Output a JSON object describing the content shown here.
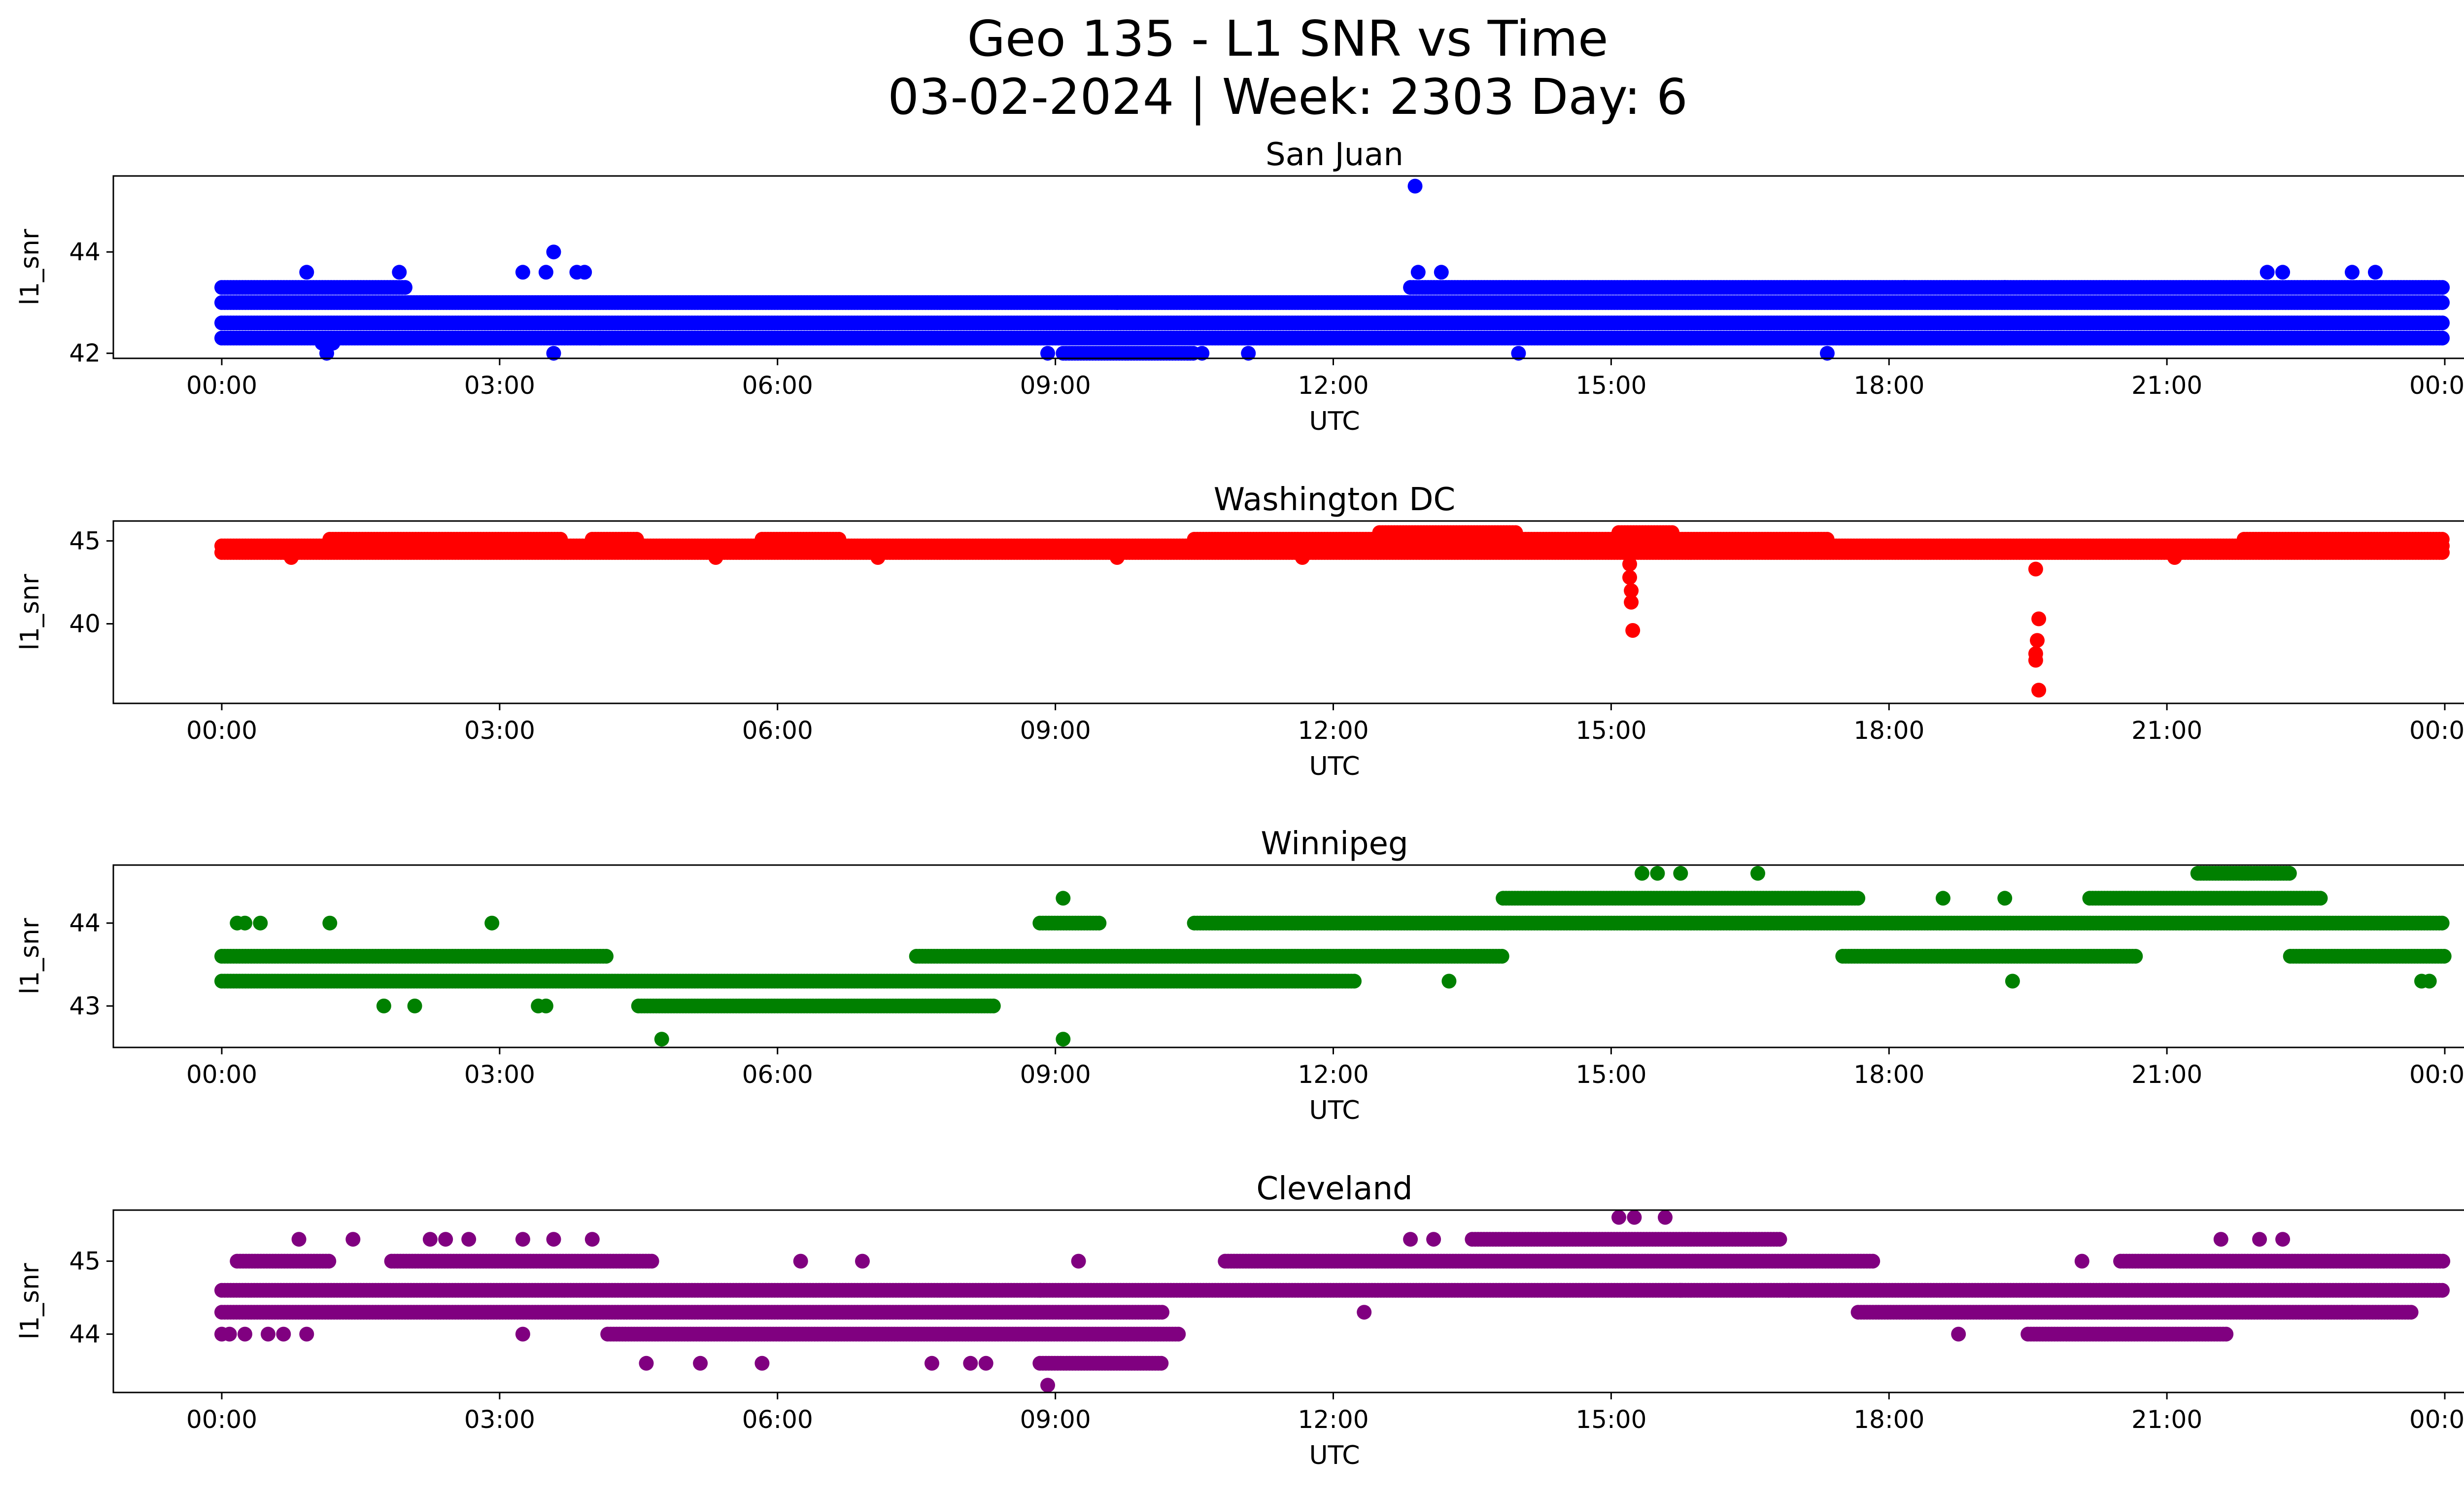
{
  "figure": {
    "title": "Geo 135 - L1 SNR vs Time",
    "subtitle": "03-02-2024 | Week: 2303 Day: 6"
  },
  "chart_data": [
    {
      "type": "scatter",
      "title": "San Juan",
      "xlabel": "UTC",
      "ylabel": "l1_snr",
      "color": "#0000ff",
      "xlim": [
        "00:00",
        "24:00"
      ],
      "ylim": [
        41.9,
        45.5
      ],
      "xticks": [
        "00:00",
        "03:00",
        "06:00",
        "09:00",
        "12:00",
        "15:00",
        "18:00",
        "21:00",
        "00:00"
      ],
      "yticks": [
        42,
        44
      ],
      "bands": [
        {
          "y": 42.3,
          "segments": [
            [
              "00:00",
              "24:00"
            ]
          ]
        },
        {
          "y": 42.6,
          "segments": [
            [
              "00:00",
              "24:00"
            ]
          ]
        },
        {
          "y": 43.0,
          "segments": [
            [
              "00:00",
              "24:00"
            ]
          ]
        },
        {
          "y": 43.3,
          "segments": [
            [
              "00:00",
              "02:00"
            ],
            [
              "12:50",
              "24:00"
            ]
          ]
        },
        {
          "y": 42.0,
          "segments": [
            [
              "09:05",
              "10:30"
            ]
          ]
        }
      ],
      "points": [
        [
          "00:55",
          43.6
        ],
        [
          "01:05",
          42.2
        ],
        [
          "01:08",
          42.0
        ],
        [
          "01:12",
          42.2
        ],
        [
          "01:55",
          43.6
        ],
        [
          "03:15",
          43.6
        ],
        [
          "03:30",
          43.6
        ],
        [
          "03:35",
          44.0
        ],
        [
          "03:35",
          42.0
        ],
        [
          "03:50",
          43.6
        ],
        [
          "03:55",
          43.6
        ],
        [
          "04:05",
          42.3
        ],
        [
          "08:55",
          42.0
        ],
        [
          "09:40",
          43.0
        ],
        [
          "10:35",
          42.0
        ],
        [
          "11:05",
          42.0
        ],
        [
          "12:53",
          45.3
        ],
        [
          "12:55",
          43.6
        ],
        [
          "13:10",
          43.6
        ],
        [
          "14:00",
          42.0
        ],
        [
          "17:20",
          42.0
        ],
        [
          "18:10",
          43.3
        ],
        [
          "19:15",
          43.3
        ],
        [
          "22:05",
          43.6
        ],
        [
          "22:15",
          43.6
        ],
        [
          "23:00",
          43.6
        ],
        [
          "23:15",
          43.6
        ]
      ]
    },
    {
      "type": "scatter",
      "title": "Washington DC",
      "xlabel": "UTC",
      "ylabel": "l1_snr",
      "color": "#ff0000",
      "xlim": [
        "00:00",
        "24:00"
      ],
      "ylim": [
        35.2,
        46.2
      ],
      "xticks": [
        "00:00",
        "03:00",
        "06:00",
        "09:00",
        "12:00",
        "15:00",
        "18:00",
        "21:00",
        "00:00"
      ],
      "yticks": [
        40,
        45
      ],
      "bands": [
        {
          "y": 44.3,
          "segments": [
            [
              "00:00",
              "24:00"
            ]
          ]
        },
        {
          "y": 44.7,
          "segments": [
            [
              "00:00",
              "24:00"
            ]
          ]
        },
        {
          "y": 45.1,
          "segments": [
            [
              "01:10",
              "03:40"
            ],
            [
              "04:00",
              "04:30"
            ],
            [
              "05:50",
              "06:40"
            ],
            [
              "10:30",
              "17:20"
            ],
            [
              "21:50",
              "24:00"
            ]
          ]
        },
        {
          "y": 45.5,
          "segments": [
            [
              "12:30",
              "14:00"
            ],
            [
              "15:05",
              "15:40"
            ]
          ]
        }
      ],
      "points": [
        [
          "15:12",
          43.6
        ],
        [
          "15:12",
          42.8
        ],
        [
          "15:13",
          42.0
        ],
        [
          "15:13",
          41.3
        ],
        [
          "15:14",
          39.6
        ],
        [
          "19:35",
          43.3
        ],
        [
          "19:37",
          40.3
        ],
        [
          "19:36",
          39.0
        ],
        [
          "19:35",
          38.2
        ],
        [
          "19:35",
          37.8
        ],
        [
          "19:37",
          36.0
        ],
        [
          "00:45",
          44.0
        ],
        [
          "05:20",
          44.0
        ],
        [
          "07:05",
          44.0
        ],
        [
          "09:40",
          44.0
        ],
        [
          "11:40",
          44.0
        ],
        [
          "21:05",
          44.0
        ]
      ]
    },
    {
      "type": "scatter",
      "title": "Winnipeg",
      "xlabel": "UTC",
      "ylabel": "l1_snr",
      "color": "#008000",
      "xlim": [
        "00:00",
        "24:00"
      ],
      "ylim": [
        42.5,
        44.7
      ],
      "xticks": [
        "00:00",
        "03:00",
        "06:00",
        "09:00",
        "12:00",
        "15:00",
        "18:00",
        "21:00",
        "00:00"
      ],
      "yticks": [
        43,
        44
      ],
      "bands": [
        {
          "y": 43.3,
          "segments": [
            [
              "00:00",
              "12:15"
            ]
          ]
        },
        {
          "y": 43.6,
          "segments": [
            [
              "00:00",
              "04:10"
            ],
            [
              "07:30",
              "13:50"
            ],
            [
              "17:30",
              "20:40"
            ],
            [
              "22:20",
              "24:00"
            ]
          ]
        },
        {
          "y": 44.0,
          "segments": [
            [
              "08:50",
              "09:30"
            ],
            [
              "10:30",
              "24:00"
            ]
          ]
        },
        {
          "y": 44.3,
          "segments": [
            [
              "13:50",
              "17:40"
            ],
            [
              "20:10",
              "22:40"
            ]
          ]
        },
        {
          "y": 43.0,
          "segments": [
            [
              "04:30",
              "08:20"
            ]
          ]
        },
        {
          "y": 44.6,
          "segments": [
            [
              "21:20",
              "22:20"
            ]
          ]
        }
      ],
      "points": [
        [
          "00:10",
          44.0
        ],
        [
          "00:15",
          44.0
        ],
        [
          "00:25",
          44.0
        ],
        [
          "01:10",
          44.0
        ],
        [
          "01:45",
          43.0
        ],
        [
          "02:05",
          43.0
        ],
        [
          "02:55",
          44.0
        ],
        [
          "03:25",
          43.0
        ],
        [
          "03:30",
          43.0
        ],
        [
          "04:45",
          42.6
        ],
        [
          "09:05",
          44.3
        ],
        [
          "09:05",
          42.6
        ],
        [
          "13:15",
          43.3
        ],
        [
          "15:20",
          44.6
        ],
        [
          "15:30",
          44.6
        ],
        [
          "15:45",
          44.6
        ],
        [
          "16:35",
          44.6
        ],
        [
          "18:35",
          44.3
        ],
        [
          "19:15",
          44.3
        ],
        [
          "19:20",
          43.3
        ],
        [
          "23:45",
          43.3
        ],
        [
          "23:50",
          43.3
        ]
      ]
    },
    {
      "type": "scatter",
      "title": "Cleveland",
      "xlabel": "UTC",
      "ylabel": "l1_snr",
      "color": "#800080",
      "xlim": [
        "00:00",
        "24:00"
      ],
      "ylim": [
        43.2,
        45.7
      ],
      "xticks": [
        "00:00",
        "03:00",
        "06:00",
        "09:00",
        "12:00",
        "15:00",
        "18:00",
        "21:00",
        "00:00"
      ],
      "yticks": [
        44,
        45
      ],
      "bands": [
        {
          "y": 44.0,
          "segments": [
            [
              "04:10",
              "10:20"
            ],
            [
              "19:30",
              "21:40"
            ]
          ]
        },
        {
          "y": 44.3,
          "segments": [
            [
              "00:00",
              "10:10"
            ],
            [
              "17:40",
              "23:40"
            ]
          ]
        },
        {
          "y": 44.6,
          "segments": [
            [
              "00:00",
              "24:00"
            ]
          ]
        },
        {
          "y": 45.0,
          "segments": [
            [
              "00:10",
              "01:10"
            ],
            [
              "01:50",
              "04:40"
            ],
            [
              "10:50",
              "17:50"
            ],
            [
              "20:30",
              "24:00"
            ]
          ]
        },
        {
          "y": 45.3,
          "segments": [
            [
              "13:30",
              "16:50"
            ]
          ]
        },
        {
          "y": 43.6,
          "segments": [
            [
              "08:50",
              "10:10"
            ]
          ]
        }
      ],
      "points": [
        [
          "00:00",
          44.0
        ],
        [
          "00:05",
          44.0
        ],
        [
          "00:15",
          44.0
        ],
        [
          "00:30",
          44.0
        ],
        [
          "00:40",
          44.0
        ],
        [
          "00:55",
          44.0
        ],
        [
          "00:50",
          45.3
        ],
        [
          "01:25",
          45.3
        ],
        [
          "02:15",
          45.3
        ],
        [
          "02:25",
          45.3
        ],
        [
          "02:40",
          45.3
        ],
        [
          "03:15",
          45.3
        ],
        [
          "03:35",
          45.3
        ],
        [
          "04:00",
          45.3
        ],
        [
          "03:15",
          44.0
        ],
        [
          "04:35",
          43.6
        ],
        [
          "05:10",
          43.6
        ],
        [
          "05:50",
          43.6
        ],
        [
          "06:15",
          45.0
        ],
        [
          "06:55",
          45.0
        ],
        [
          "07:40",
          43.6
        ],
        [
          "08:05",
          43.6
        ],
        [
          "08:15",
          43.6
        ],
        [
          "08:55",
          43.3
        ],
        [
          "08:50",
          44.6
        ],
        [
          "09:15",
          45.0
        ],
        [
          "12:20",
          44.3
        ],
        [
          "12:50",
          45.3
        ],
        [
          "13:05",
          45.3
        ],
        [
          "15:05",
          45.6
        ],
        [
          "15:15",
          45.6
        ],
        [
          "15:35",
          45.6
        ],
        [
          "15:45",
          44.6
        ],
        [
          "16:55",
          44.6
        ],
        [
          "18:45",
          44.0
        ],
        [
          "20:05",
          45.0
        ],
        [
          "21:35",
          45.3
        ],
        [
          "22:00",
          45.3
        ],
        [
          "22:15",
          45.3
        ],
        [
          "23:00",
          44.3
        ]
      ]
    }
  ]
}
